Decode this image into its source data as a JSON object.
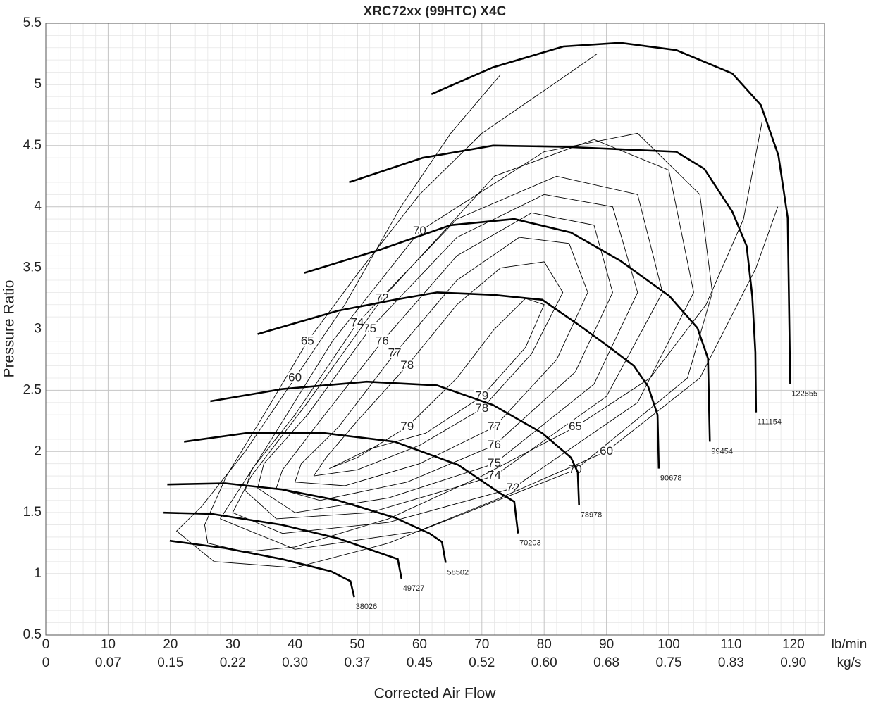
{
  "chart_data": {
    "type": "compressor-map",
    "title": "XRC72xx (99HTC) X4C",
    "x_label": "Corrected Air Flow",
    "y_label": "Pressure Ratio",
    "x_unit": "lb/min",
    "x2_unit": "kg/s",
    "xlim": [
      0,
      125
    ],
    "ylim": [
      0.5,
      5.5
    ],
    "xticks": [
      0,
      10,
      20,
      30,
      40,
      50,
      60,
      70,
      80,
      90,
      100,
      110,
      120
    ],
    "x2ticks": [
      {
        "value": 0,
        "label": "0"
      },
      {
        "value": 10,
        "label": "0.07"
      },
      {
        "value": 20,
        "label": "0.15"
      },
      {
        "value": 30,
        "label": "0.22"
      },
      {
        "value": 40,
        "label": "0.30"
      },
      {
        "value": 50,
        "label": "0.37"
      },
      {
        "value": 60,
        "label": "0.45"
      },
      {
        "value": 70,
        "label": "0.52"
      },
      {
        "value": 80,
        "label": "0.60"
      },
      {
        "value": 90,
        "label": "0.68"
      },
      {
        "value": 100,
        "label": "0.75"
      },
      {
        "value": 110,
        "label": "0.83"
      },
      {
        "value": 120,
        "label": "0.90"
      }
    ],
    "yticks": [
      0.5,
      1,
      1.5,
      2,
      2.5,
      3,
      3.5,
      4,
      4.5,
      5,
      5.5
    ],
    "grid": true,
    "minor_grid": true,
    "series": [
      {
        "name": "38026",
        "color": "#000000",
        "x": [
          19.9,
          28.8,
          37.9,
          45.8,
          48.9,
          49.5
        ],
        "values": [
          1.27,
          1.21,
          1.12,
          1.02,
          0.94,
          0.81
        ]
      },
      {
        "name": "49727",
        "color": "#000000",
        "x": [
          18.9,
          26.6,
          37.9,
          46.9,
          53.7,
          56.5,
          57.1
        ],
        "values": [
          1.5,
          1.49,
          1.4,
          1.29,
          1.17,
          1.12,
          0.96
        ]
      },
      {
        "name": "58502",
        "color": "#000000",
        "x": [
          19.5,
          28.8,
          37.9,
          46.9,
          56.0,
          61.6,
          63.6,
          64.2
        ],
        "values": [
          1.73,
          1.74,
          1.69,
          1.6,
          1.46,
          1.33,
          1.26,
          1.09
        ]
      },
      {
        "name": "70203",
        "color": "#000000",
        "x": [
          22.2,
          32.2,
          44.7,
          56.0,
          66.2,
          72.9,
          75.2,
          75.8
        ],
        "values": [
          2.08,
          2.15,
          2.15,
          2.08,
          1.89,
          1.66,
          1.59,
          1.33
        ]
      },
      {
        "name": "78978",
        "color": "#000000",
        "x": [
          26.4,
          37.9,
          51.5,
          62.8,
          71.8,
          79.7,
          84.3,
          85.4,
          85.6
        ],
        "values": [
          2.41,
          2.51,
          2.57,
          2.54,
          2.38,
          2.15,
          1.95,
          1.83,
          1.56
        ]
      },
      {
        "name": "90678",
        "color": "#000000",
        "x": [
          34.0,
          46.9,
          56.0,
          62.8,
          71.8,
          79.7,
          85.4,
          90.0,
          94.4,
          96.7,
          98.2,
          98.4
        ],
        "values": [
          2.96,
          3.15,
          3.24,
          3.3,
          3.28,
          3.24,
          3.04,
          2.87,
          2.7,
          2.53,
          2.3,
          1.86
        ]
      },
      {
        "name": "99454",
        "color": "#000000",
        "x": [
          41.5,
          53.7,
          65.0,
          75.2,
          84.3,
          92.2,
          100.1,
          104.6,
          106.3,
          106.6
        ],
        "values": [
          3.46,
          3.65,
          3.85,
          3.9,
          3.79,
          3.56,
          3.27,
          3.01,
          2.76,
          2.08
        ]
      },
      {
        "name": "111154",
        "color": "#000000",
        "x": [
          48.7,
          60.5,
          71.8,
          83.1,
          101.2,
          105.7,
          110.2,
          112.5,
          113.4,
          113.9,
          114.0
        ],
        "values": [
          4.2,
          4.4,
          4.5,
          4.49,
          4.45,
          4.31,
          3.96,
          3.68,
          3.27,
          2.81,
          2.32
        ]
      },
      {
        "name": "122855",
        "color": "#000000",
        "x": [
          61.9,
          71.8,
          83.1,
          92.2,
          101.2,
          110.2,
          114.8,
          117.6,
          119.1,
          119.5
        ],
        "values": [
          4.92,
          5.14,
          5.31,
          5.34,
          5.28,
          5.09,
          4.83,
          4.42,
          3.91,
          2.55
        ]
      }
    ],
    "contours": [
      {
        "name": "79",
        "x": [
          45.5,
          52,
          61,
          70,
          77,
          80,
          77,
          72,
          66,
          58,
          50,
          45.5
        ],
        "values": [
          1.86,
          2.02,
          2.15,
          2.45,
          2.85,
          3.2,
          3.25,
          3.0,
          2.6,
          2.2,
          1.95,
          1.86
        ]
      },
      {
        "name": "78",
        "x": [
          43,
          50,
          60,
          70,
          78,
          83,
          80,
          73,
          66,
          58,
          50,
          45,
          43
        ],
        "values": [
          1.8,
          1.85,
          2.05,
          2.35,
          2.8,
          3.3,
          3.55,
          3.5,
          3.2,
          2.7,
          2.25,
          1.95,
          1.8
        ]
      },
      {
        "name": "77",
        "x": [
          40,
          48,
          60,
          72,
          82,
          87,
          84,
          76,
          66,
          56,
          47,
          41,
          40
        ],
        "values": [
          1.75,
          1.72,
          1.9,
          2.2,
          2.75,
          3.3,
          3.7,
          3.75,
          3.4,
          2.8,
          2.2,
          1.9,
          1.75
        ]
      },
      {
        "name": "76",
        "x": [
          37,
          44,
          58,
          72,
          85,
          91,
          88,
          78,
          66,
          54,
          44,
          38,
          37
        ],
        "values": [
          1.7,
          1.6,
          1.75,
          2.05,
          2.65,
          3.3,
          3.85,
          3.95,
          3.6,
          2.9,
          2.25,
          1.85,
          1.7
        ]
      },
      {
        "name": "75",
        "x": [
          34,
          40,
          55,
          72,
          88,
          95,
          91,
          80,
          66,
          52,
          42,
          35,
          34
        ],
        "values": [
          1.7,
          1.5,
          1.62,
          1.9,
          2.55,
          3.3,
          4.0,
          4.1,
          3.75,
          3.0,
          2.3,
          1.9,
          1.7
        ]
      },
      {
        "name": "74",
        "x": [
          32,
          37,
          52,
          72,
          90,
          99,
          95,
          82,
          66,
          50,
          40,
          33,
          32
        ],
        "values": [
          1.68,
          1.45,
          1.5,
          1.8,
          2.45,
          3.3,
          4.1,
          4.25,
          3.9,
          3.05,
          2.3,
          1.85,
          1.68
        ]
      },
      {
        "name": "72",
        "x": [
          30,
          38,
          55,
          75,
          95,
          104,
          100,
          88,
          72,
          54,
          42,
          33,
          30
        ],
        "values": [
          1.5,
          1.33,
          1.42,
          1.7,
          2.4,
          3.3,
          4.3,
          4.55,
          4.25,
          3.25,
          2.4,
          1.8,
          1.5
        ]
      },
      {
        "name": "70",
        "x": [
          28,
          40,
          60,
          85,
          103,
          107,
          105,
          95,
          80,
          60,
          46,
          35,
          28
        ],
        "values": [
          1.45,
          1.2,
          1.35,
          1.85,
          2.6,
          3.3,
          4.1,
          4.6,
          4.45,
          3.8,
          2.9,
          2.0,
          1.45
        ]
      },
      {
        "name": "65",
        "x": [
          88.5,
          80,
          70,
          60,
          50,
          42,
          35,
          29,
          25.5,
          26,
          32,
          40,
          55,
          70,
          85,
          97,
          106,
          112,
          115
        ],
        "values": [
          5.25,
          4.95,
          4.6,
          4.1,
          3.45,
          2.9,
          2.3,
          1.8,
          1.4,
          1.25,
          1.18,
          1.22,
          1.45,
          1.8,
          2.2,
          2.6,
          3.2,
          3.9,
          4.7
        ]
      },
      {
        "name": "60",
        "x": [
          73,
          65,
          57,
          48,
          40,
          32,
          25,
          21,
          27,
          40,
          55,
          72,
          90,
          105,
          114,
          117.5
        ],
        "values": [
          5.08,
          4.6,
          4.0,
          3.2,
          2.6,
          2.0,
          1.55,
          1.35,
          1.1,
          1.05,
          1.25,
          1.6,
          2.0,
          2.6,
          3.5,
          4.0
        ]
      }
    ]
  }
}
